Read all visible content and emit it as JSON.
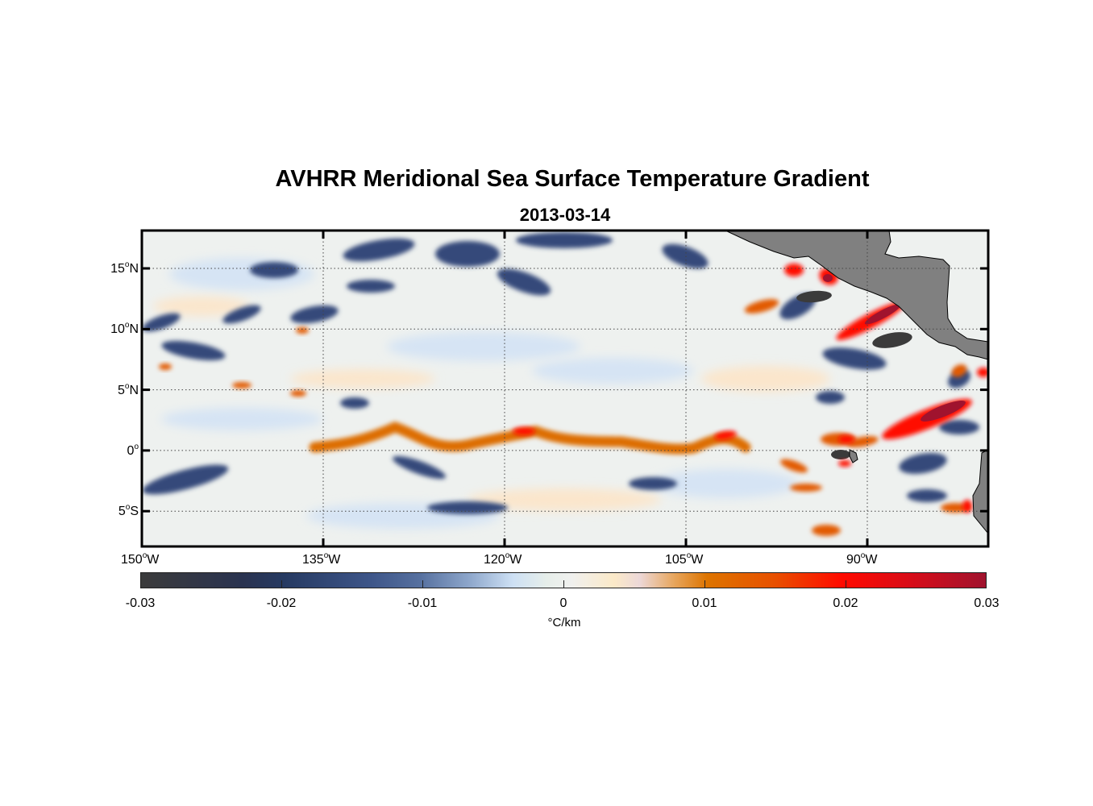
{
  "title": "AVHRR Meridional Sea Surface Temperature Gradient",
  "subtitle": "2013-03-14",
  "map": {
    "extent": {
      "lon": [
        -150,
        -80
      ],
      "lat": [
        -8,
        18
      ]
    },
    "x_ticks": [
      {
        "deg": "150",
        "unit": "o",
        "dir": "W"
      },
      {
        "deg": "135",
        "unit": "o",
        "dir": "W"
      },
      {
        "deg": "120",
        "unit": "o",
        "dir": "W"
      },
      {
        "deg": "105",
        "unit": "o",
        "dir": "W"
      },
      {
        "deg": "90",
        "unit": "o",
        "dir": "W"
      }
    ],
    "y_ticks": [
      {
        "deg": "15",
        "unit": "o",
        "dir": "N"
      },
      {
        "deg": "10",
        "unit": "o",
        "dir": "N"
      },
      {
        "deg": "5",
        "unit": "o",
        "dir": "N"
      },
      {
        "deg": "0",
        "unit": "o",
        "dir": ""
      },
      {
        "deg": "5",
        "unit": "o",
        "dir": "S"
      }
    ],
    "land_color": "#808080"
  },
  "colorbar": {
    "ticks": [
      "-0.03",
      "-0.02",
      "-0.01",
      "0",
      "0.01",
      "0.02",
      "0.03"
    ],
    "range": [
      -0.03,
      0.03
    ],
    "label": "°C/km",
    "colors": {
      "min": "#3b3b3b",
      "navy": "#263a62",
      "zero": "#f0f0ee",
      "orange": "#dd7400",
      "red": "#ff0a00",
      "max": "#a0132e"
    }
  }
}
